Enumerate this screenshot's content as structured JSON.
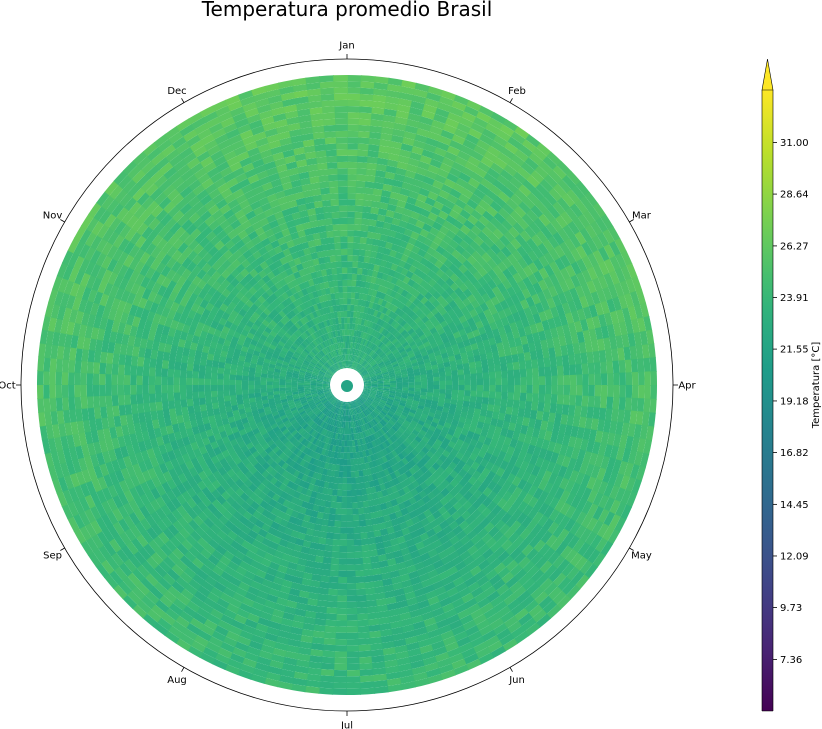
{
  "chart_data": {
    "type": "heatmap",
    "projection": "polar",
    "title": "Temperatura promedio Brasil",
    "angular_labels": [
      "Jan",
      "Feb",
      "Mar",
      "Apr",
      "May",
      "Jun",
      "Jul",
      "Aug",
      "Sep",
      "Oct",
      "Nov",
      "Dec"
    ],
    "angular_direction": "clockwise",
    "angular_zero": "top",
    "colorbar": {
      "label": "Temperatura [°C]",
      "colormap": "viridis",
      "ticks": [
        7.36,
        9.73,
        12.09,
        14.45,
        16.82,
        19.18,
        21.55,
        23.91,
        26.27,
        28.64,
        31.0
      ],
      "tick_labels": [
        "7.36",
        "9.73",
        "12.09",
        "14.45",
        "16.82",
        "19.18",
        "21.55",
        "23.91",
        "26.27",
        "28.64",
        "31.00"
      ],
      "range": [
        5.0,
        33.4
      ],
      "extend": "max"
    },
    "temperature_range_shown": [
      15.5,
      29.0
    ],
    "radial_axis_labels": false,
    "grid": false
  }
}
